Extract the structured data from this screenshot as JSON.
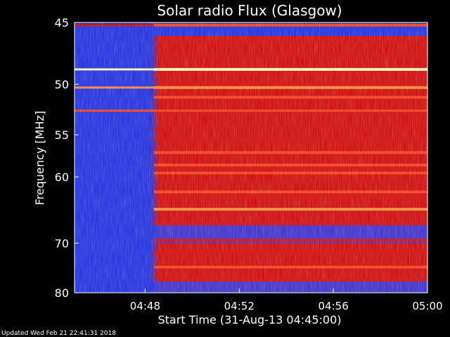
{
  "chart_data": {
    "type": "heatmap",
    "title": "Solar radio Flux (Glasgow)",
    "ylabel": "Frequency [MHz]",
    "xlabel": "Start Time (31-Aug-13 04:45:00)",
    "footer": "Updated Wed Feb 21 22:41:31 2018",
    "y_scale": "reciprocal",
    "y_range": [
      45,
      80
    ],
    "y_ticks": [
      {
        "value": 45,
        "label": "45"
      },
      {
        "value": 50,
        "label": "50"
      },
      {
        "value": 55,
        "label": "55"
      },
      {
        "value": 60,
        "label": "60"
      },
      {
        "value": 70,
        "label": "70"
      },
      {
        "value": 80,
        "label": "80"
      }
    ],
    "x_range": [
      "04:45:00",
      "05:00:00"
    ],
    "x_ticks": [
      {
        "value": "04:48",
        "label": "04:48"
      },
      {
        "value": "04:52",
        "label": "04:52"
      },
      {
        "value": "04:56",
        "label": "04:56"
      },
      {
        "value": "05:00",
        "label": "05:00"
      }
    ],
    "data_start_time": "04:48:15",
    "colors": {
      "background": "#000000",
      "low": "#1a2ae8",
      "mid": "#d80000",
      "high": "#ff3a10",
      "peak": "#ffffc0"
    },
    "bands_before_onset": [
      {
        "freq": 45.2,
        "level": 0.6
      },
      {
        "freq": 48.7,
        "level": 1.0
      },
      {
        "freq": 50.3,
        "level": 0.85
      },
      {
        "freq": 52.5,
        "level": 0.75
      }
    ],
    "bands_after_onset": [
      {
        "freq": 45.2,
        "level": 0.7
      },
      {
        "freq": 48.7,
        "level": 1.0
      },
      {
        "freq": 49.2,
        "level": 0.6
      },
      {
        "freq": 50.3,
        "level": 0.9
      },
      {
        "freq": 51.2,
        "level": 0.7
      },
      {
        "freq": 53.0,
        "level": 0.5
      },
      {
        "freq": 54.5,
        "level": 0.55
      },
      {
        "freq": 55.5,
        "level": 0.6
      },
      {
        "freq": 57.0,
        "level": 0.65
      },
      {
        "freq": 58.5,
        "level": 0.7
      },
      {
        "freq": 59.5,
        "level": 0.75
      },
      {
        "freq": 62.0,
        "level": 0.7
      },
      {
        "freq": 64.5,
        "level": 0.85
      },
      {
        "freq": 66.5,
        "level": 0.5
      },
      {
        "freq": 69.5,
        "level": 0.6
      },
      {
        "freq": 72.0,
        "level": 0.6
      },
      {
        "freq": 74.5,
        "level": 0.75
      },
      {
        "freq": 76.0,
        "level": 0.5
      }
    ],
    "blue_gaps_after_onset": [
      {
        "from": 67.0,
        "to": 70.0
      },
      {
        "from": 77.5,
        "to": 80.0
      }
    ]
  }
}
